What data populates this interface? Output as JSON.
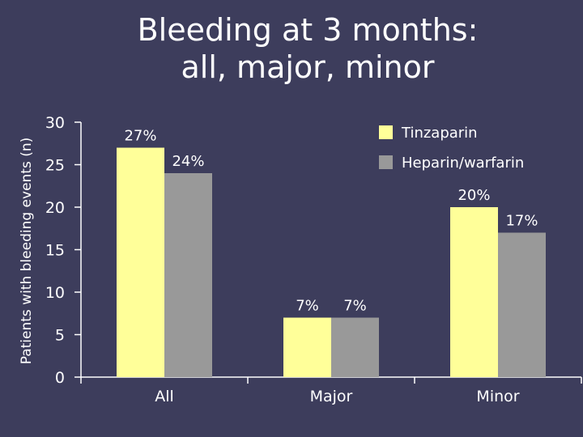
{
  "slide": {
    "title_line1": "Bleeding at 3 months:",
    "title_line2": "all, major, minor"
  },
  "colors": {
    "background": "#3d3d5c",
    "tinzaparin": "#ffff99",
    "heparin_warfarin": "#999999",
    "axis": "#ffffff"
  },
  "chart_data": {
    "type": "bar",
    "title": "Bleeding at 3 months: all, major, minor",
    "xlabel": "",
    "ylabel": "Patients with bleeding events (n)",
    "ylim": [
      0,
      30
    ],
    "yticks": [
      0,
      5,
      10,
      15,
      20,
      25,
      30
    ],
    "categories": [
      "All",
      "Major",
      "Minor"
    ],
    "legend_position": "top-right",
    "series": [
      {
        "name": "Tinzaparin",
        "values": [
          27,
          7,
          20
        ],
        "labels": [
          "27%",
          "7%",
          "20%"
        ]
      },
      {
        "name": "Heparin/warfarin",
        "values": [
          24,
          7,
          17
        ],
        "labels": [
          "24%",
          "7%",
          "17%"
        ]
      }
    ]
  }
}
